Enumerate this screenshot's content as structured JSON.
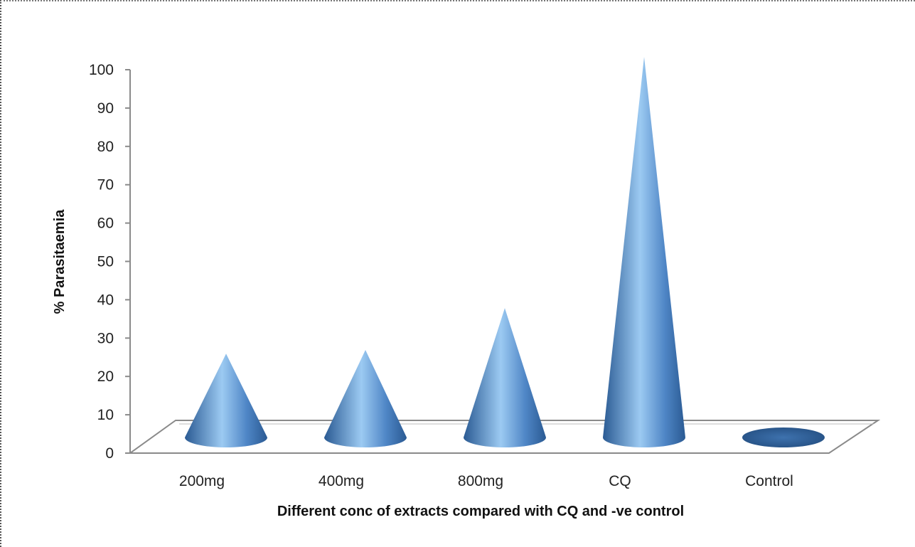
{
  "chart_data": {
    "type": "bar",
    "shape": "cone",
    "view": "3d",
    "categories": [
      "200mg",
      "400mg",
      "800mg",
      "CQ",
      "Control"
    ],
    "series": [
      {
        "values": [
          22,
          23,
          34,
          100,
          0
        ]
      }
    ],
    "title": "",
    "xlabel": "Different conc of extracts compared with CQ and -ve control",
    "ylabel": "% Parasitaemia",
    "ylim": [
      0,
      100
    ],
    "yticks": [
      0,
      10,
      20,
      30,
      40,
      50,
      60,
      70,
      80,
      90,
      100
    ],
    "grid": false,
    "legend": "none",
    "colors": {
      "cone_dark": "#2a5a93",
      "cone_light": "#9ccaf2",
      "cone_mid": "#4f86c6",
      "floor_edge": "#8a8a8a"
    }
  }
}
